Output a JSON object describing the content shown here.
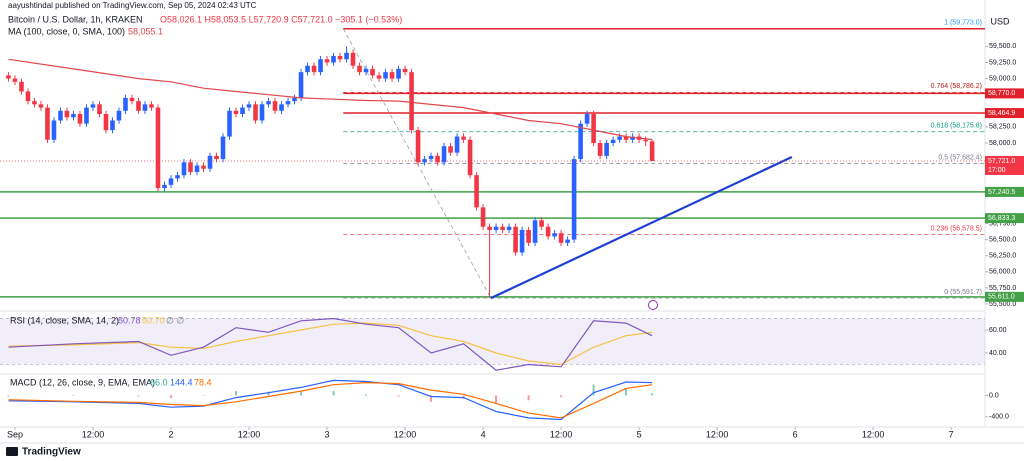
{
  "header": {
    "publisher": "aayushtindal published on TradingView.com, Sep 05, 2024 02:43 UTC",
    "symbol": "Bitcoin / U.S. Dollar, 1h, KRAKEN",
    "ohlc": "O58,026.1 H58,053.5 L57,720.9 C57,721.0 −305.1 (−0.53%)",
    "ma_label": "MA (100, close, 0, SMA, 100)",
    "ma_value": "58,055.1",
    "brand": "TradingView"
  },
  "chart_data": [
    {
      "type": "candlestick",
      "currency": "USD",
      "up_color": "#2962ff",
      "down_color": "#f23645",
      "xlim": [
        -1.3,
        150.2
      ],
      "xticks": [
        {
          "value": 1,
          "label": "Sep"
        },
        {
          "value": 13,
          "label": "12:00"
        },
        {
          "value": 25,
          "label": "2"
        },
        {
          "value": 37,
          "label": "12:00"
        },
        {
          "value": 49,
          "label": "3"
        },
        {
          "value": 61,
          "label": "12:00"
        },
        {
          "value": 73,
          "label": "4"
        },
        {
          "value": 85,
          "label": "12:00"
        },
        {
          "value": 97,
          "label": "5"
        },
        {
          "value": 109,
          "label": "12:00"
        },
        {
          "value": 121,
          "label": "6"
        },
        {
          "value": 133,
          "label": "12:00"
        },
        {
          "value": 145,
          "label": "7"
        }
      ],
      "ylim": [
        55407,
        60096
      ],
      "yticks": [
        {
          "value": 59500,
          "label": "59,500.0"
        },
        {
          "value": 59250,
          "label": "59,250.0"
        },
        {
          "value": 59000,
          "label": "59,000.0"
        },
        {
          "value": 58250,
          "label": "58,250.0"
        },
        {
          "value": 58000,
          "label": "58,000.0"
        },
        {
          "value": 56750,
          "label": "56,750.0"
        },
        {
          "value": 56500,
          "label": "56,500.0"
        },
        {
          "value": 56250,
          "label": "56,250.0"
        },
        {
          "value": 56000,
          "label": "56,000.0"
        },
        {
          "value": 55750,
          "label": "55,750.0"
        },
        {
          "value": 55500,
          "label": "55,500.0"
        }
      ],
      "open": [
        59050,
        59000,
        58950,
        58800,
        58650,
        58600,
        58550,
        58050,
        58350,
        58500,
        58400,
        58450,
        58300,
        58550,
        58600,
        58450,
        58200,
        58350,
        58500,
        58700,
        58650,
        58500,
        58600,
        58550,
        57300,
        57350,
        57450,
        57500,
        57700,
        57550,
        57650,
        57600,
        57800,
        57750,
        58100,
        58500,
        58450,
        58550,
        58600,
        58350,
        58600,
        58650,
        58500,
        58600,
        58650,
        58700,
        59100,
        59200,
        59100,
        59300,
        59250,
        59350,
        59300,
        59400,
        59200,
        59100,
        59150,
        59050,
        59000,
        59100,
        59000,
        59150,
        59100,
        58200,
        57700,
        57750,
        57800,
        57700,
        57950,
        57850,
        58100,
        58050,
        57500,
        57000,
        56700,
        56650,
        56700,
        56650,
        56700,
        56300,
        56650,
        56450,
        56800,
        56700,
        56550,
        56600,
        56450,
        56500,
        57750,
        58300,
        58450,
        58000,
        57800,
        58000,
        58050,
        58100,
        58050,
        58100,
        58050,
        58026.1
      ],
      "high": [
        59100,
        59050,
        59000,
        58850,
        58700,
        58650,
        58600,
        58400,
        58550,
        58550,
        58500,
        58500,
        58600,
        58650,
        58650,
        58500,
        58400,
        58550,
        58750,
        58750,
        58700,
        58650,
        58650,
        58600,
        57400,
        57500,
        57550,
        57750,
        57750,
        57700,
        57700,
        57850,
        57850,
        58150,
        58550,
        58550,
        58600,
        58650,
        58650,
        58650,
        58700,
        58700,
        58650,
        58700,
        58750,
        59150,
        59250,
        59250,
        59350,
        59350,
        59400,
        59400,
        59500,
        59450,
        59250,
        59200,
        59200,
        59100,
        59150,
        59150,
        59200,
        59200,
        59150,
        58250,
        57800,
        57850,
        57850,
        58000,
        58000,
        58150,
        58150,
        58100,
        57550,
        57050,
        56750,
        56750,
        56750,
        56750,
        56750,
        56700,
        56700,
        56850,
        56850,
        56750,
        56650,
        56650,
        56550,
        57800,
        58350,
        58500,
        58500,
        58050,
        58050,
        58100,
        58150,
        58150,
        58150,
        58150,
        58100,
        58053.5
      ],
      "low": [
        58950,
        58900,
        58750,
        58600,
        58550,
        58500,
        58000,
        58000,
        58300,
        58350,
        58350,
        58250,
        58250,
        58500,
        58400,
        58150,
        58150,
        58300,
        58450,
        58600,
        58450,
        58450,
        58500,
        57250,
        57250,
        57300,
        57400,
        57450,
        57500,
        57500,
        57550,
        57550,
        57700,
        57700,
        58050,
        58400,
        58400,
        58500,
        58300,
        58300,
        58550,
        58450,
        58450,
        58550,
        58600,
        58650,
        59050,
        59050,
        59050,
        59200,
        59200,
        59250,
        59250,
        59150,
        59050,
        59050,
        59000,
        58950,
        58950,
        58950,
        58950,
        59050,
        58150,
        57650,
        57650,
        57700,
        57650,
        57650,
        57800,
        57800,
        58000,
        57450,
        56950,
        56650,
        55591.7,
        56600,
        56600,
        56600,
        56250,
        56250,
        56400,
        56400,
        56650,
        56500,
        56500,
        56400,
        56400,
        56450,
        57700,
        58250,
        57950,
        57750,
        57750,
        57950,
        58000,
        58000,
        58000,
        58000,
        57950,
        57720.9
      ],
      "close": [
        59000,
        58950,
        58800,
        58650,
        58600,
        58550,
        58050,
        58350,
        58500,
        58400,
        58450,
        58300,
        58550,
        58600,
        58450,
        58200,
        58350,
        58500,
        58700,
        58650,
        58500,
        58600,
        58550,
        57300,
        57350,
        57450,
        57500,
        57700,
        57550,
        57650,
        57600,
        57800,
        57750,
        58100,
        58500,
        58450,
        58550,
        58600,
        58350,
        58600,
        58650,
        58500,
        58600,
        58650,
        58700,
        59100,
        59200,
        59100,
        59300,
        59250,
        59350,
        59300,
        59400,
        59200,
        59100,
        59150,
        59050,
        59000,
        59100,
        59000,
        59150,
        59100,
        58200,
        57700,
        57750,
        57800,
        57700,
        57950,
        57850,
        58100,
        58050,
        57500,
        57000,
        56700,
        56650,
        56700,
        56650,
        56700,
        56300,
        56650,
        56450,
        56800,
        56700,
        56550,
        56600,
        56450,
        56500,
        57750,
        58300,
        58450,
        58000,
        57800,
        58000,
        58050,
        58100,
        58050,
        58100,
        58050,
        58026.1,
        57721
      ],
      "close_label": "57,721.0",
      "countdown": "17:00",
      "ma": {
        "color": "#e0474c",
        "x": [
          0,
          10,
          20,
          25,
          30,
          35,
          40,
          45,
          50,
          55,
          60,
          65,
          70,
          75,
          80,
          85,
          90,
          95,
          99
        ],
        "values": [
          59300,
          59150,
          59000,
          58950,
          58850,
          58800,
          58750,
          58700,
          58680,
          58660,
          58650,
          58600,
          58550,
          58450,
          58350,
          58300,
          58200,
          58100,
          58055
        ]
      },
      "levels": [
        {
          "value": 59773,
          "color": "#e0202a"
        },
        {
          "value": 58770,
          "label": "58,770.0",
          "color": "#e0202a"
        },
        {
          "value": 58464.9,
          "label": "58,464.9",
          "color": "#e0202a"
        },
        {
          "value": 57240.5,
          "label": "57,240.5",
          "color": "#43a047"
        },
        {
          "value": 56833.3,
          "label": "56,833.3",
          "color": "#43a047"
        },
        {
          "value": 55611,
          "label": "55,611.0",
          "color": "#43a047"
        }
      ],
      "fib": [
        {
          "value": 59773,
          "label": "1 (59,773.0)",
          "color": "#2196f3"
        },
        {
          "value": 58786.2,
          "label": "0.764 (58,786.2)",
          "color": "#b71c1c"
        },
        {
          "value": 58175.8,
          "label": "0.618 (58,175.8)",
          "color": "#089981"
        },
        {
          "value": 57682.4,
          "label": "0.5 (57,682.4)",
          "color": "#787b86"
        },
        {
          "value": 56578.5,
          "label": "0.236 (56,578.5)",
          "color": "#f23645"
        },
        {
          "value": 55591.7,
          "label": "0 (55,591.7)",
          "color": "#787b86"
        }
      ],
      "fib_diagonal": {
        "color": "#9e9e9e",
        "x": [
          51.5,
          74.2
        ],
        "values": [
          59773,
          55591.7
        ]
      },
      "trendline": {
        "color": "#1e3fd6",
        "x": [
          74.2,
          120.5
        ],
        "values": [
          55591.7,
          57783
        ]
      }
    },
    {
      "type": "line",
      "title": "RSI (14, close, SMA, 14, 2)",
      "value_texts": [
        "50.78",
        "50.70",
        "∅ ∅"
      ],
      "ylim": [
        22.6,
        76.5
      ],
      "yticks": [
        {
          "value": 60,
          "label": "60.00"
        },
        {
          "value": 40,
          "label": "40.00"
        }
      ],
      "band": [
        30,
        70
      ],
      "x": [
        0,
        10,
        20,
        25,
        30,
        35,
        40,
        45,
        50,
        55,
        60,
        65,
        70,
        75,
        80,
        85,
        90,
        95,
        99
      ],
      "series": [
        {
          "name": "RSI",
          "color": "#7e57c2",
          "values": [
            45,
            48,
            50,
            38,
            45,
            62,
            58,
            68,
            70,
            65,
            62,
            40,
            48,
            25,
            30,
            28,
            68,
            66,
            55
          ]
        },
        {
          "name": "RSI MA",
          "color": "#f5c242",
          "values": [
            46,
            47,
            49,
            45,
            44,
            50,
            55,
            60,
            65,
            66,
            64,
            55,
            50,
            40,
            33,
            30,
            45,
            55,
            58
          ]
        }
      ]
    },
    {
      "type": "macd",
      "title": "MACD (12, 26, close, 9, EMA, EMA)",
      "value_texts": [
        "66.0",
        "144.4",
        "78.4"
      ],
      "ylim": [
        -571,
        381
      ],
      "yticks": [
        {
          "value": 0,
          "label": "0.0"
        },
        {
          "value": -400,
          "label": "-400.0"
        }
      ],
      "x": [
        0,
        10,
        20,
        25,
        30,
        35,
        40,
        45,
        50,
        55,
        60,
        65,
        70,
        75,
        80,
        85,
        90,
        95,
        99
      ],
      "histogram": {
        "up_color": "#26a69a",
        "down_color": "#ef5350",
        "values": [
          -20,
          -10,
          -20,
          -50,
          -10,
          80,
          70,
          70,
          80,
          20,
          -20,
          -120,
          -60,
          -150,
          -90,
          -30,
          200,
          120,
          40
        ]
      },
      "series": [
        {
          "name": "MACD",
          "color": "#2962ff",
          "values": [
            -100,
            -120,
            -150,
            -220,
            -200,
            -40,
            50,
            150,
            280,
            260,
            200,
            -20,
            -40,
            -300,
            -420,
            -450,
            50,
            250,
            240
          ]
        },
        {
          "name": "Signal",
          "color": "#ff6d00",
          "values": [
            -80,
            -110,
            -130,
            -170,
            -190,
            -120,
            -20,
            80,
            200,
            240,
            220,
            100,
            20,
            -150,
            -330,
            -420,
            -150,
            130,
            200
          ]
        }
      ]
    }
  ]
}
